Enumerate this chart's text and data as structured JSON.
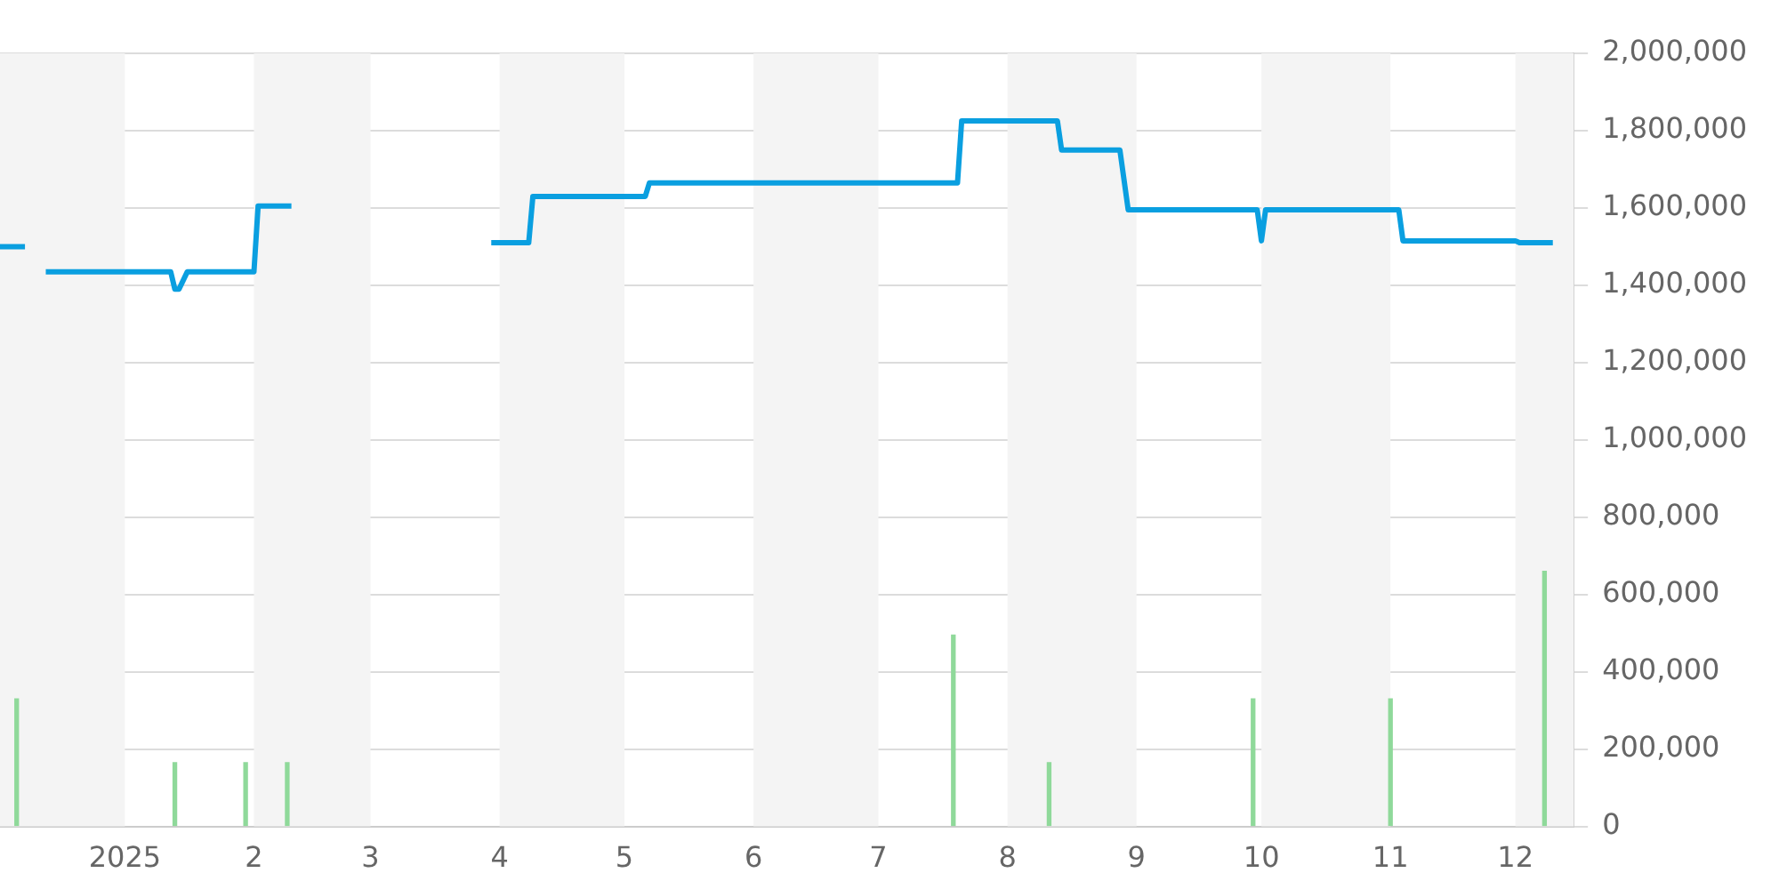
{
  "chart_data": {
    "type": "line",
    "x": [
      "2024-12-02",
      "2024-12-08",
      null,
      "2024-12-13",
      "2025-01-12",
      "2025-01-13",
      "2025-01-14",
      "2025-01-16",
      "2025-02-01",
      "2025-02-02",
      "2025-02-10",
      null,
      "2025-03-30",
      "2025-04-08",
      "2025-04-09",
      "2025-05-06",
      "2025-05-07",
      "2025-07-20",
      "2025-07-21",
      "2025-08-13",
      "2025-08-14",
      "2025-08-28",
      "2025-08-30",
      "2025-09-30",
      "2025-10-01",
      "2025-10-02",
      "2025-11-03",
      "2025-11-04",
      "2025-12-01",
      "2025-12-02",
      "2025-12-10"
    ],
    "series": [
      {
        "color": "#0a9fe0",
        "values": [
          1500000,
          1500000,
          null,
          1435000,
          1435000,
          1390000,
          1390000,
          1435000,
          1435000,
          1605000,
          1605000,
          null,
          1510000,
          1510000,
          1630000,
          1630000,
          1665000,
          1665000,
          1825000,
          1825000,
          1750000,
          1750000,
          1595000,
          1595000,
          1515000,
          1595000,
          1595000,
          1515000,
          1515000,
          1510000,
          1510000
        ]
      },
      {
        "type": "bar",
        "color": "#8fd99a",
        "x": [
          "2024-12-06",
          "2025-01-13",
          "2025-01-30",
          "2025-02-09",
          "2025-07-19",
          "2025-08-11",
          "2025-09-29",
          "2025-11-01",
          "2025-12-08"
        ],
        "values": [
          330000,
          165000,
          165000,
          165000,
          495000,
          165000,
          330000,
          330000,
          660000
        ]
      }
    ],
    "xlim": [
      "2024-12-02",
      "2025-12-15"
    ],
    "xticks": [
      {
        "value": "2025-01-01",
        "label": "2025"
      },
      {
        "value": "2025-02-01",
        "label": "2"
      },
      {
        "value": "2025-03-01",
        "label": "3"
      },
      {
        "value": "2025-04-01",
        "label": "4"
      },
      {
        "value": "2025-05-01",
        "label": "5"
      },
      {
        "value": "2025-06-01",
        "label": "6"
      },
      {
        "value": "2025-07-01",
        "label": "7"
      },
      {
        "value": "2025-08-01",
        "label": "8"
      },
      {
        "value": "2025-09-01",
        "label": "9"
      },
      {
        "value": "2025-10-01",
        "label": "10"
      },
      {
        "value": "2025-11-01",
        "label": "11"
      },
      {
        "value": "2025-12-01",
        "label": "12"
      }
    ],
    "ylim": [
      0,
      2000000
    ],
    "yticks": [
      {
        "value": 0,
        "label": "0"
      },
      {
        "value": 200000,
        "label": "200,000"
      },
      {
        "value": 400000,
        "label": "400,000"
      },
      {
        "value": 600000,
        "label": "600,000"
      },
      {
        "value": 800000,
        "label": "800,000"
      },
      {
        "value": 1000000,
        "label": "1,000,000"
      },
      {
        "value": 1200000,
        "label": "1,200,000"
      },
      {
        "value": 1400000,
        "label": "1,400,000"
      },
      {
        "value": 1600000,
        "label": "1,600,000"
      },
      {
        "value": 1800000,
        "label": "1,800,000"
      },
      {
        "value": 2000000,
        "label": "2,000,000"
      }
    ],
    "bands": [
      {
        "axis": "x",
        "from": "2024-12-02",
        "to": "2025-01-01",
        "color": "#f4f4f4"
      },
      {
        "axis": "x",
        "from": "2025-02-01",
        "to": "2025-03-01",
        "color": "#f4f4f4"
      },
      {
        "axis": "x",
        "from": "2025-04-01",
        "to": "2025-05-01",
        "color": "#f4f4f4"
      },
      {
        "axis": "x",
        "from": "2025-06-01",
        "to": "2025-07-01",
        "color": "#f4f4f4"
      },
      {
        "axis": "x",
        "from": "2025-08-01",
        "to": "2025-09-01",
        "color": "#f4f4f4"
      },
      {
        "axis": "x",
        "from": "2025-10-01",
        "to": "2025-11-01",
        "color": "#f4f4f4"
      },
      {
        "axis": "x",
        "from": "2025-12-01",
        "to": "2025-12-15",
        "color": "#f4f4f4"
      }
    ],
    "grid": "y",
    "legend": false
  }
}
